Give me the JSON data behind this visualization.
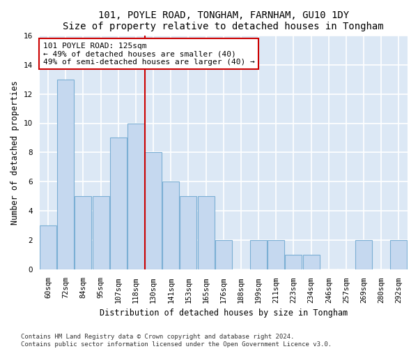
{
  "title": "101, POYLE ROAD, TONGHAM, FARNHAM, GU10 1DY",
  "subtitle": "Size of property relative to detached houses in Tongham",
  "xlabel": "Distribution of detached houses by size in Tongham",
  "ylabel": "Number of detached properties",
  "categories": [
    "60sqm",
    "72sqm",
    "84sqm",
    "95sqm",
    "107sqm",
    "118sqm",
    "130sqm",
    "141sqm",
    "153sqm",
    "165sqm",
    "176sqm",
    "188sqm",
    "199sqm",
    "211sqm",
    "223sqm",
    "234sqm",
    "246sqm",
    "257sqm",
    "269sqm",
    "280sqm",
    "292sqm"
  ],
  "values": [
    3,
    13,
    5,
    5,
    9,
    10,
    8,
    6,
    5,
    5,
    2,
    0,
    2,
    2,
    1,
    1,
    0,
    0,
    2,
    0,
    2
  ],
  "bar_color": "#c5d8ef",
  "bar_edge_color": "#7bafd4",
  "background_color": "#dce8f5",
  "grid_color": "#ffffff",
  "vline_color": "#cc0000",
  "vline_x_index": 5.5,
  "annotation_box_color": "#cc0000",
  "annotation_line1": "101 POYLE ROAD: 125sqm",
  "annotation_line2": "← 49% of detached houses are smaller (40)",
  "annotation_line3": "49% of semi-detached houses are larger (40) →",
  "ylim": [
    0,
    16
  ],
  "yticks": [
    0,
    2,
    4,
    6,
    8,
    10,
    12,
    14,
    16
  ],
  "fig_bg": "#ffffff",
  "footnote_line1": "Contains HM Land Registry data © Crown copyright and database right 2024.",
  "footnote_line2": "Contains public sector information licensed under the Open Government Licence v3.0.",
  "title_fontsize": 10,
  "xlabel_fontsize": 8.5,
  "ylabel_fontsize": 8.5,
  "tick_fontsize": 7.5,
  "annotation_fontsize": 8,
  "footnote_fontsize": 6.5
}
